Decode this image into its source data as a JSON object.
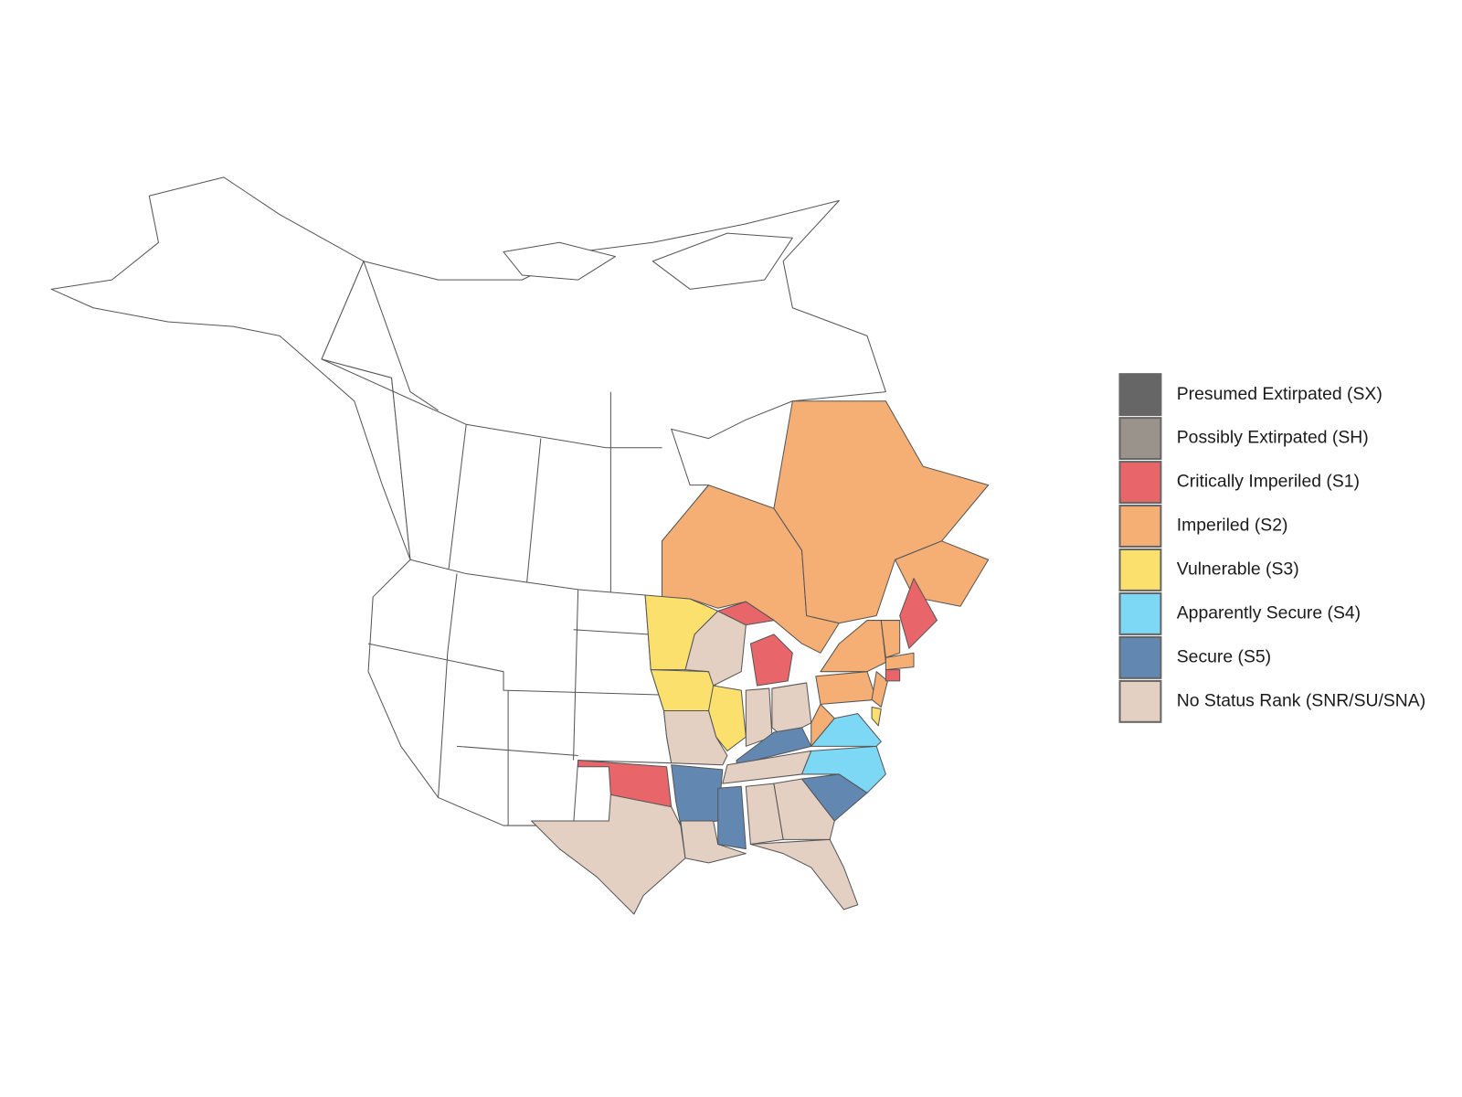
{
  "legend": {
    "items": [
      {
        "label": "Presumed Extirpated (SX)",
        "color": "#666666"
      },
      {
        "label": "Possibly Extirpated (SH)",
        "color": "#9a938b"
      },
      {
        "label": "Critically Imperiled (S1)",
        "color": "#e8666a"
      },
      {
        "label": "Imperiled (S2)",
        "color": "#f5ae74"
      },
      {
        "label": "Vulnerable (S3)",
        "color": "#fce06d"
      },
      {
        "label": "Apparently Secure (S4)",
        "color": "#7dd8f5"
      },
      {
        "label": "Secure (S5)",
        "color": "#6288b2"
      },
      {
        "label": "No Status Rank (SNR/SU/SNA)",
        "color": "#e3d0c3"
      }
    ]
  }
}
